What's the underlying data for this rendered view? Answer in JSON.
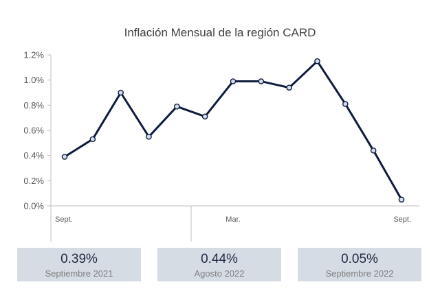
{
  "chart_data": {
    "type": "line",
    "title": "Inflación Mensual de la región CARD",
    "xlabel": "",
    "ylabel": "",
    "ylim": [
      0,
      1.2
    ],
    "yticks": [
      "0.0%",
      "0.2%",
      "0.4%",
      "0.6%",
      "0.8%",
      "1.0%",
      "1.2%"
    ],
    "x_tick_labels": [
      {
        "index": 0,
        "label": "Sept."
      },
      {
        "index": 6,
        "label": "Mar."
      },
      {
        "index": 12,
        "label": "Sept."
      }
    ],
    "grid": false,
    "legend": "none",
    "series": [
      {
        "values": [
          0.39,
          0.53,
          0.9,
          0.55,
          0.79,
          0.71,
          0.99,
          0.99,
          0.94,
          1.15,
          0.81,
          0.44,
          0.05
        ],
        "color": "#0d1b3d"
      }
    ]
  },
  "kpis": [
    {
      "value": "0.39%",
      "label": "Septiembre 2021"
    },
    {
      "value": "0.44%",
      "label": "Agosto 2022"
    },
    {
      "value": "0.05%",
      "label": "Septiembre 2022"
    }
  ],
  "colors": {
    "line": "#0d1b3d",
    "marker_fill": "#d6dcef",
    "axis": "#bfbfbf",
    "kpi_background": "#d6dce4"
  }
}
